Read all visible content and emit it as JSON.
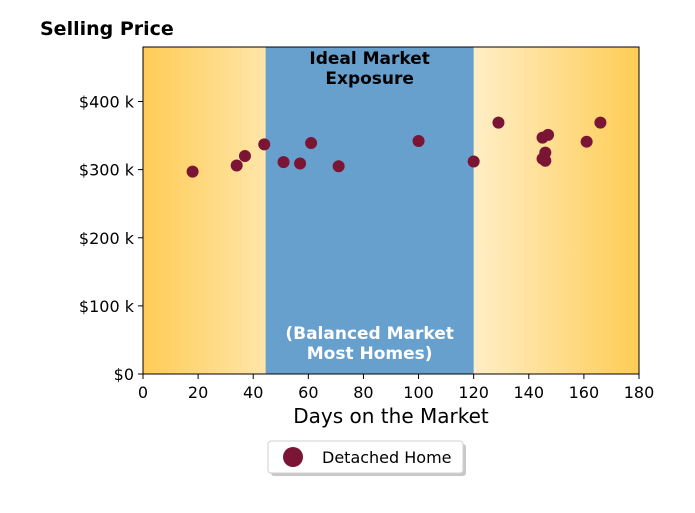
{
  "chart_data": {
    "type": "scatter",
    "title": "Selling Price",
    "xlabel": "Days on the Market",
    "ylabel": "",
    "xlim": [
      0,
      180
    ],
    "ylim": [
      0,
      480000
    ],
    "x_ticks": [
      0,
      20,
      40,
      60,
      80,
      100,
      120,
      140,
      160,
      180
    ],
    "x_tick_labels": [
      "0",
      "20",
      "40",
      "60",
      "80",
      "100",
      "120",
      "140",
      "160",
      "180"
    ],
    "y_ticks": [
      0,
      100000,
      200000,
      300000,
      400000
    ],
    "y_tick_labels": [
      "$0",
      "$100 k",
      "$200 k",
      "$300 k",
      "$400 k"
    ],
    "grid": false,
    "legend": {
      "position": "bottom-center",
      "entries": [
        "Detached Home"
      ]
    },
    "bands": [
      {
        "x_start": 44.5,
        "x_end": 120,
        "color": "#68a0cd",
        "label_top": [
          "Ideal Market",
          "Exposure"
        ],
        "label_bottom": [
          "(Balanced Market",
          "Most Homes)"
        ]
      }
    ],
    "background_gradient": {
      "edge_color": "#ffcc55",
      "center_color": "#ffffff"
    },
    "series": [
      {
        "name": "Detached Home",
        "color": "#7b1535",
        "points": [
          {
            "x": 18,
            "y": 297000
          },
          {
            "x": 34,
            "y": 306000
          },
          {
            "x": 37,
            "y": 320000
          },
          {
            "x": 44,
            "y": 337000
          },
          {
            "x": 51,
            "y": 311000
          },
          {
            "x": 57,
            "y": 309000
          },
          {
            "x": 61,
            "y": 339000
          },
          {
            "x": 71,
            "y": 305000
          },
          {
            "x": 100,
            "y": 342000
          },
          {
            "x": 120,
            "y": 312000
          },
          {
            "x": 129,
            "y": 369000
          },
          {
            "x": 145,
            "y": 347000
          },
          {
            "x": 147,
            "y": 351000
          },
          {
            "x": 146,
            "y": 325000
          },
          {
            "x": 145,
            "y": 316000
          },
          {
            "x": 146,
            "y": 313000
          },
          {
            "x": 161,
            "y": 341000
          },
          {
            "x": 166,
            "y": 369000
          }
        ]
      }
    ]
  }
}
